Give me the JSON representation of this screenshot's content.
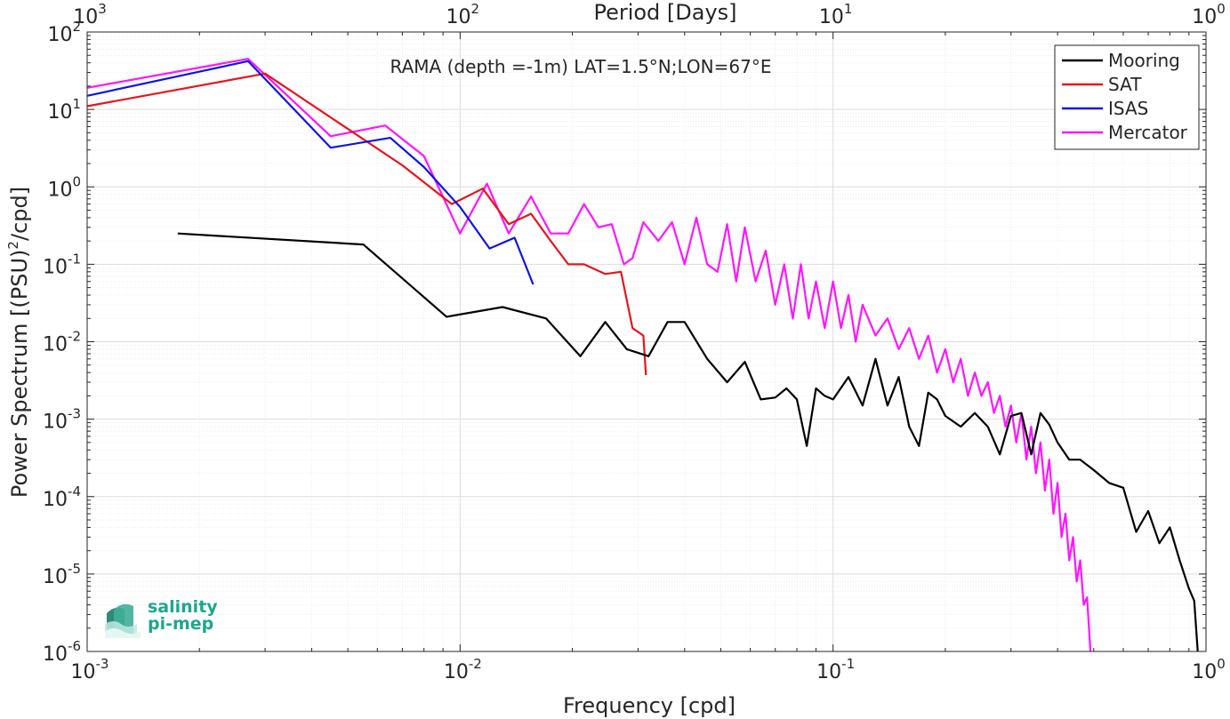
{
  "chart_data": {
    "type": "line",
    "title": "RAMA (depth =-1m) LAT=1.5°N;LON=67°E",
    "xlabel": "Frequency [cpd]",
    "ylabel": "Power Spectrum [(PSU)²/cpd]",
    "ylabel_parts": {
      "pre": "Power Spectrum [(PSU)",
      "sup": "2",
      "post": "/cpd]"
    },
    "top_xlabel": "Period [Days]",
    "xscale": "log",
    "yscale": "log",
    "xlim": [
      0.001,
      1
    ],
    "ylim": [
      1e-06,
      100
    ],
    "grid": true,
    "legend_position": "top-right",
    "x_ticks": [
      {
        "v": 0.001,
        "base": "10",
        "exp": "-3"
      },
      {
        "v": 0.01,
        "base": "10",
        "exp": "-2"
      },
      {
        "v": 0.1,
        "base": "10",
        "exp": "-1"
      },
      {
        "v": 1,
        "base": "10",
        "exp": "0"
      }
    ],
    "top_ticks": [
      {
        "v": 0.001,
        "base": "10",
        "exp": "3"
      },
      {
        "v": 0.01,
        "base": "10",
        "exp": "2"
      },
      {
        "v": 0.1,
        "base": "10",
        "exp": "1"
      },
      {
        "v": 1,
        "base": "10",
        "exp": "0"
      }
    ],
    "y_ticks": [
      {
        "v": 100,
        "base": "10",
        "exp": "2"
      },
      {
        "v": 10,
        "base": "10",
        "exp": "1"
      },
      {
        "v": 1,
        "base": "10",
        "exp": "0"
      },
      {
        "v": 0.1,
        "base": "10",
        "exp": "-1"
      },
      {
        "v": 0.01,
        "base": "10",
        "exp": "-2"
      },
      {
        "v": 0.001,
        "base": "10",
        "exp": "-3"
      },
      {
        "v": 0.0001,
        "base": "10",
        "exp": "-4"
      },
      {
        "v": 1e-05,
        "base": "10",
        "exp": "-5"
      },
      {
        "v": 1e-06,
        "base": "10",
        "exp": "-6"
      }
    ],
    "series": [
      {
        "name": "Mooring",
        "color": "#000000",
        "x": [
          0.00175,
          0.0055,
          0.0092,
          0.013,
          0.017,
          0.021,
          0.0245,
          0.028,
          0.032,
          0.036,
          0.04,
          0.046,
          0.052,
          0.058,
          0.064,
          0.07,
          0.075,
          0.08,
          0.085,
          0.09,
          0.095,
          0.1,
          0.11,
          0.12,
          0.13,
          0.14,
          0.15,
          0.16,
          0.17,
          0.18,
          0.19,
          0.2,
          0.22,
          0.24,
          0.26,
          0.28,
          0.3,
          0.32,
          0.34,
          0.36,
          0.38,
          0.4,
          0.43,
          0.46,
          0.5,
          0.55,
          0.6,
          0.65,
          0.7,
          0.75,
          0.8,
          0.85,
          0.9,
          0.93,
          0.95
        ],
        "y": [
          0.25,
          0.18,
          0.021,
          0.028,
          0.02,
          0.0065,
          0.018,
          0.008,
          0.0065,
          0.018,
          0.018,
          0.006,
          0.003,
          0.0055,
          0.0018,
          0.0019,
          0.0025,
          0.0018,
          0.00045,
          0.0025,
          0.002,
          0.0018,
          0.0035,
          0.0015,
          0.006,
          0.0015,
          0.0035,
          0.0008,
          0.00045,
          0.0022,
          0.0018,
          0.0011,
          0.0008,
          0.0012,
          0.0008,
          0.00035,
          0.0011,
          0.0012,
          0.00035,
          0.0012,
          0.00085,
          0.0005,
          0.0003,
          0.0003,
          0.00022,
          0.00015,
          0.00013,
          3.5e-05,
          6.5e-05,
          2.5e-05,
          4e-05,
          1.5e-05,
          6.5e-06,
          4.5e-06,
          1e-06
        ]
      },
      {
        "name": "SAT",
        "color": "#e8141a",
        "x": [
          0.001,
          0.003,
          0.007,
          0.0095,
          0.0115,
          0.0135,
          0.0155,
          0.0175,
          0.0195,
          0.0215,
          0.0245,
          0.027,
          0.029,
          0.031,
          0.0315
        ],
        "y": [
          11,
          29,
          1.9,
          0.6,
          0.95,
          0.33,
          0.45,
          0.2,
          0.1,
          0.1,
          0.075,
          0.08,
          0.015,
          0.012,
          0.0037
        ]
      },
      {
        "name": "ISAS",
        "color": "#0f14e6",
        "x": [
          0.001,
          0.0027,
          0.0045,
          0.0065,
          0.008,
          0.01,
          0.012,
          0.014,
          0.0157
        ],
        "y": [
          15,
          42,
          3.2,
          4.3,
          1.8,
          0.55,
          0.16,
          0.22,
          0.055
        ]
      },
      {
        "name": "Mercator",
        "color": "#ff14ff",
        "x": [
          0.001,
          0.0027,
          0.0045,
          0.0063,
          0.008,
          0.01,
          0.0118,
          0.0135,
          0.0155,
          0.0175,
          0.0195,
          0.0215,
          0.0235,
          0.0255,
          0.0275,
          0.029,
          0.031,
          0.034,
          0.037,
          0.04,
          0.043,
          0.046,
          0.049,
          0.052,
          0.055,
          0.058,
          0.062,
          0.066,
          0.07,
          0.074,
          0.078,
          0.082,
          0.086,
          0.09,
          0.095,
          0.1,
          0.105,
          0.11,
          0.115,
          0.12,
          0.13,
          0.14,
          0.15,
          0.16,
          0.17,
          0.18,
          0.19,
          0.2,
          0.21,
          0.22,
          0.23,
          0.24,
          0.25,
          0.26,
          0.27,
          0.28,
          0.29,
          0.3,
          0.31,
          0.32,
          0.33,
          0.34,
          0.35,
          0.36,
          0.37,
          0.38,
          0.39,
          0.4,
          0.41,
          0.42,
          0.43,
          0.44,
          0.45,
          0.46,
          0.47,
          0.48,
          0.49
        ],
        "y": [
          19,
          45,
          4.5,
          6.2,
          2.5,
          0.25,
          1.1,
          0.25,
          0.75,
          0.25,
          0.25,
          0.6,
          0.3,
          0.33,
          0.1,
          0.12,
          0.35,
          0.2,
          0.35,
          0.1,
          0.4,
          0.1,
          0.08,
          0.33,
          0.06,
          0.3,
          0.06,
          0.15,
          0.03,
          0.1,
          0.02,
          0.1,
          0.02,
          0.06,
          0.015,
          0.06,
          0.015,
          0.04,
          0.01,
          0.03,
          0.012,
          0.02,
          0.008,
          0.015,
          0.006,
          0.012,
          0.004,
          0.008,
          0.003,
          0.006,
          0.002,
          0.004,
          0.002,
          0.003,
          0.0012,
          0.002,
          0.0008,
          0.0015,
          0.0005,
          0.0012,
          0.0003,
          0.0008,
          0.0002,
          0.0005,
          0.00012,
          0.0003,
          6e-05,
          0.00015,
          3e-05,
          6e-05,
          1.5e-05,
          3e-05,
          8e-06,
          1.5e-05,
          4e-06,
          5e-06,
          1e-06
        ]
      }
    ]
  },
  "logo": {
    "line1": "salinity",
    "line2": "pi-mep"
  }
}
